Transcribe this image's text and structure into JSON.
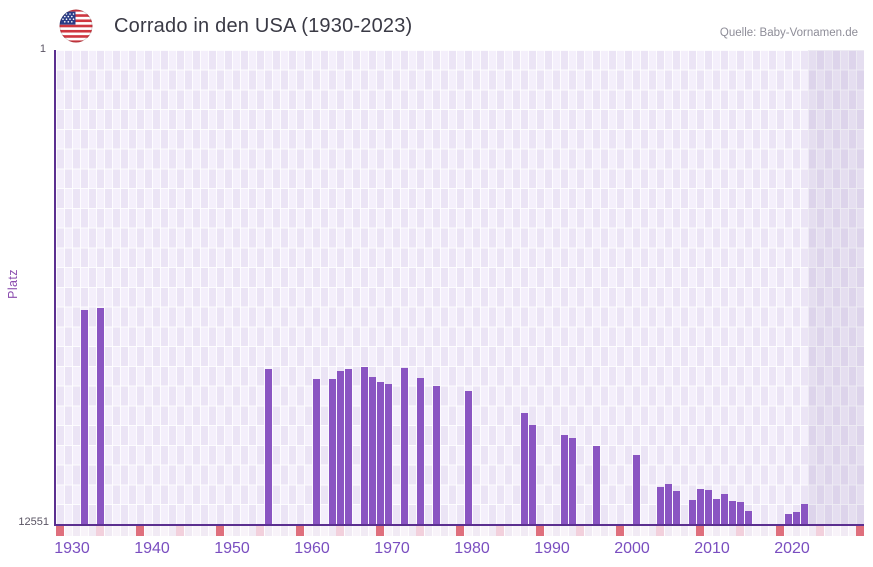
{
  "header": {
    "title": "Corrado in den USA (1930-2023)",
    "source": "Quelle: Baby-Vornamen.de",
    "flag": "us-flag-icon"
  },
  "chart_data": {
    "type": "bar",
    "title": "Corrado in den USA (1930-2023)",
    "xlabel": "",
    "ylabel": "Platz",
    "y_axis": {
      "top_label": "1",
      "bottom_label": "12551",
      "min": 1,
      "max": 12551,
      "inverted": true,
      "note": "rank scale, 1 at top"
    },
    "x_axis": {
      "start_year": 1928,
      "end_year": 2029,
      "tick_years": [
        1930,
        1940,
        1950,
        1960,
        1970,
        1980,
        1990,
        2000,
        2010,
        2020
      ]
    },
    "series": [
      {
        "name": "Platz",
        "points": [
          {
            "year": 1931,
            "platz": 6886
          },
          {
            "year": 1933,
            "platz": 6825
          },
          {
            "year": 1954,
            "platz": 8448
          },
          {
            "year": 1960,
            "platz": 8705
          },
          {
            "year": 1962,
            "platz": 8721
          },
          {
            "year": 1963,
            "platz": 8508
          },
          {
            "year": 1964,
            "platz": 8447
          },
          {
            "year": 1966,
            "platz": 8402
          },
          {
            "year": 1967,
            "platz": 8667
          },
          {
            "year": 1968,
            "platz": 8799
          },
          {
            "year": 1969,
            "platz": 8844
          },
          {
            "year": 1971,
            "platz": 8413
          },
          {
            "year": 1973,
            "platz": 8685
          },
          {
            "year": 1975,
            "platz": 8889
          },
          {
            "year": 1979,
            "platz": 9022
          },
          {
            "year": 1986,
            "platz": 9620
          },
          {
            "year": 1987,
            "platz": 9930
          },
          {
            "year": 1991,
            "platz": 10202
          },
          {
            "year": 1992,
            "platz": 10282
          },
          {
            "year": 1995,
            "platz": 10486
          },
          {
            "year": 2000,
            "platz": 10724
          },
          {
            "year": 2003,
            "platz": 11563
          },
          {
            "year": 2004,
            "platz": 11484
          },
          {
            "year": 2005,
            "platz": 11677
          },
          {
            "year": 2007,
            "platz": 11907
          },
          {
            "year": 2008,
            "platz": 11616
          },
          {
            "year": 2009,
            "platz": 11650
          },
          {
            "year": 2010,
            "platz": 11897
          },
          {
            "year": 2011,
            "platz": 11756
          },
          {
            "year": 2012,
            "platz": 11941
          },
          {
            "year": 2013,
            "platz": 11976
          },
          {
            "year": 2014,
            "platz": 12198
          },
          {
            "year": 2019,
            "platz": 12286
          },
          {
            "year": 2020,
            "platz": 12230
          },
          {
            "year": 2021,
            "platz": 12030
          }
        ]
      }
    ],
    "no_data_region": {
      "from_year": 2022,
      "to_year": 2029
    },
    "timeline_markers": {
      "red_years": [
        1928,
        1938,
        1948,
        1958,
        1968,
        1978,
        1988,
        1998,
        2008,
        2018,
        2028
      ],
      "pink_years": [
        1933,
        1943,
        1953,
        1963,
        1973,
        1983,
        1993,
        2003,
        2013,
        2023
      ]
    },
    "layout_hints": {
      "grid": true,
      "legend": false,
      "bar_width_years": 1
    },
    "colors": {
      "bar": "#8a55c2",
      "axis": "#5b2f90",
      "x_tick_label": "#7a4ec0",
      "y_tick_label": "#5a5463",
      "ylabel_text": "#8a4cae",
      "title_text": "#3a3a45",
      "source_text": "#8e8d98",
      "grid_light": "#f4effb",
      "grid_dark": "#ebe4f5",
      "no_data_overlay": "rgba(96,76,146,0.10)",
      "marker_red": "#df6f7d",
      "marker_pink": "#f2d0dc"
    }
  }
}
